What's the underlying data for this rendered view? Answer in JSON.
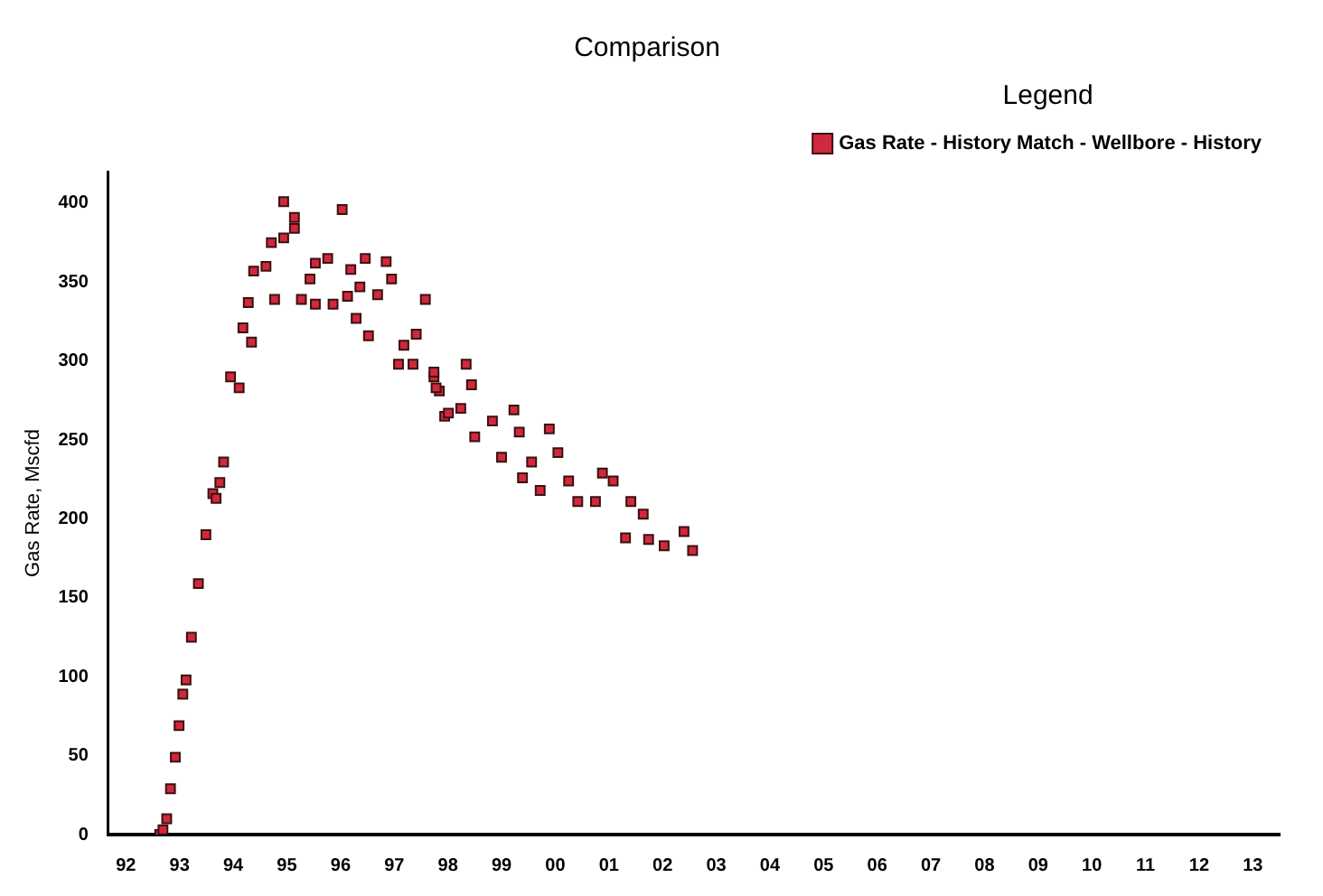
{
  "chart_data": {
    "type": "scatter",
    "title": "Comparison",
    "ylabel": "Gas Rate, Mscfd",
    "legend_title": "Legend",
    "legend": "top right",
    "grid": false,
    "marker": "square",
    "xlim": [
      1991.67,
      2013.5
    ],
    "ylim": [
      0,
      420
    ],
    "xticks": [
      {
        "value": 1992,
        "label": "92"
      },
      {
        "value": 1993,
        "label": "93"
      },
      {
        "value": 1994,
        "label": "94"
      },
      {
        "value": 1995,
        "label": "95"
      },
      {
        "value": 1996,
        "label": "96"
      },
      {
        "value": 1997,
        "label": "97"
      },
      {
        "value": 1998,
        "label": "98"
      },
      {
        "value": 1999,
        "label": "99"
      },
      {
        "value": 2000,
        "label": "00"
      },
      {
        "value": 2001,
        "label": "01"
      },
      {
        "value": 2002,
        "label": "02"
      },
      {
        "value": 2003,
        "label": "03"
      },
      {
        "value": 2004,
        "label": "04"
      },
      {
        "value": 2005,
        "label": "05"
      },
      {
        "value": 2006,
        "label": "06"
      },
      {
        "value": 2007,
        "label": "07"
      },
      {
        "value": 2008,
        "label": "08"
      },
      {
        "value": 2009,
        "label": "09"
      },
      {
        "value": 2010,
        "label": "10"
      },
      {
        "value": 2011,
        "label": "11"
      },
      {
        "value": 2012,
        "label": "12"
      },
      {
        "value": 2013,
        "label": "13"
      }
    ],
    "yticks": [
      0,
      50,
      100,
      150,
      200,
      250,
      300,
      350,
      400
    ],
    "series": [
      {
        "name": "Gas Rate - History Match - Wellbore - History",
        "color": "#d0283c",
        "x": [
          1992.63,
          1992.69,
          1992.76,
          1992.83,
          1992.92,
          1992.99,
          1993.06,
          1993.12,
          1993.22,
          1993.35,
          1993.49,
          1993.62,
          1993.68,
          1993.75,
          1993.82,
          1993.95,
          1994.11,
          1994.18,
          1994.34,
          1994.28,
          1994.77,
          1994.38,
          1994.61,
          1994.71,
          1994.94,
          1995.14,
          1994.94,
          1995.14,
          1995.27,
          1995.53,
          1995.86,
          1995.43,
          1995.53,
          1995.76,
          1996.03,
          1996.13,
          1996.19,
          1996.46,
          1996.29,
          1996.52,
          1996.36,
          1996.69,
          1996.85,
          1996.95,
          1997.58,
          1997.41,
          1997.18,
          1997.08,
          1997.35,
          1997.74,
          1997.84,
          1997.94,
          1997.74,
          1998.34,
          1997.78,
          1998.44,
          1998.01,
          1998.24,
          1998.5,
          1998.83,
          1999.23,
          1999.0,
          1999.33,
          1999.89,
          1999.56,
          2000.05,
          1999.39,
          1999.72,
          2000.25,
          2000.42,
          2000.88,
          2001.08,
          2000.75,
          2001.41,
          2001.64,
          2001.31,
          2001.74,
          2002.03,
          2002.4,
          2002.56
        ],
        "values": [
          0,
          3,
          10,
          29,
          49,
          69,
          89,
          98,
          125,
          159,
          190,
          216,
          213,
          223,
          236,
          290,
          283,
          321,
          312,
          337,
          339,
          357,
          360,
          375,
          378,
          384,
          401,
          391,
          339,
          336,
          336,
          352,
          362,
          365,
          396,
          341,
          358,
          365,
          327,
          316,
          347,
          342,
          363,
          352,
          339,
          317,
          310,
          298,
          298,
          290,
          281,
          265,
          293,
          298,
          283,
          285,
          267,
          270,
          252,
          262,
          269,
          239,
          255,
          257,
          236,
          242,
          226,
          218,
          224,
          211,
          229,
          224,
          211,
          211,
          203,
          188,
          187,
          183,
          192,
          180
        ]
      }
    ]
  }
}
